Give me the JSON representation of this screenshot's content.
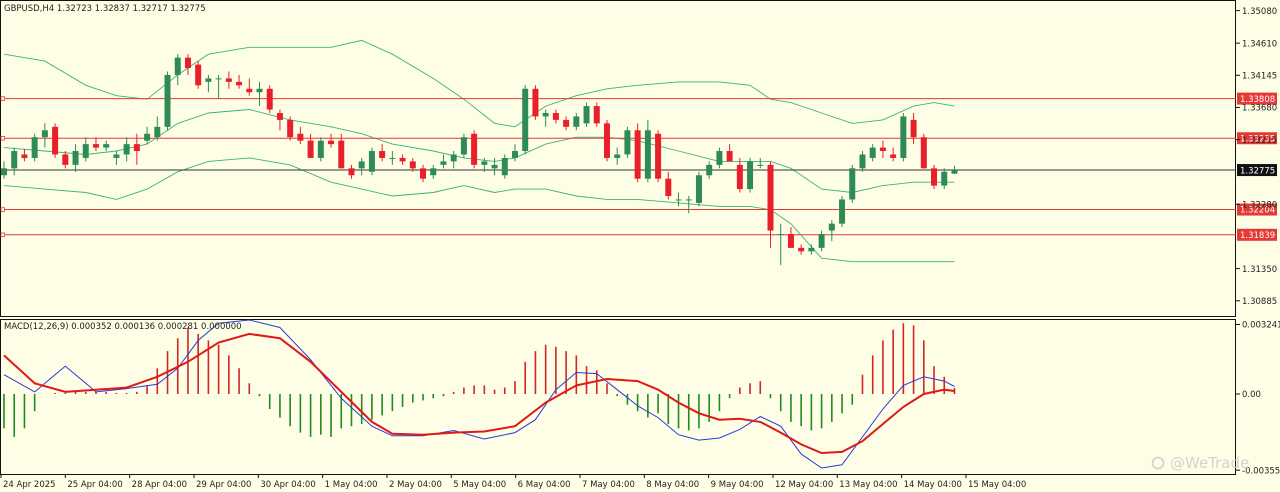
{
  "chart_data": {
    "type": "candlestick",
    "symbol_label": "GBPUSD,H4  1.32723 1.32837 1.32717 1.32775",
    "macd_label": "MACD(12,26,9) 0.000352 0.000136 0.000281 0.000000",
    "watermark": "@WeTrade",
    "colors": {
      "background": "#fefee6",
      "bull": "#2e8b57",
      "bear": "#e8202b",
      "band": "#3cb371",
      "level_line": "#e53935",
      "current_line": "#333333",
      "macd_line": "#2a3bd6",
      "signal_line": "#e01818",
      "hist_pos": "#d42424",
      "hist_neg": "#1f8a1f"
    },
    "price_axis": {
      "range": [
        1.30665,
        1.35219
      ],
      "ticks": [
        "1.35080",
        "1.34610",
        "1.34145",
        "1.33680",
        "1.33215",
        "1.32280",
        "1.31350",
        "1.30885"
      ]
    },
    "macd_axis": {
      "range": [
        -0.00373,
        0.00345
      ],
      "ticks": [
        "0.003241",
        "0.00",
        "-0.003552"
      ]
    },
    "levels": [
      {
        "value": 1.33808,
        "label": "1.33808"
      },
      {
        "value": 1.33235,
        "label": "1.33235"
      },
      {
        "value": 1.32204,
        "label": "1.32204"
      },
      {
        "value": 1.31839,
        "label": "1.31839"
      }
    ],
    "current_price": {
      "value": 1.32775,
      "label": "1.32775"
    },
    "time_labels": [
      "24 Apr 2025",
      "25 Apr 04:00",
      "28 Apr 04:00",
      "29 Apr 04:00",
      "30 Apr 04:00",
      "1 May 04:00",
      "2 May 04:00",
      "5 May 04:00",
      "6 May 04:00",
      "7 May 04:00",
      "8 May 04:00",
      "9 May 04:00",
      "12 May 04:00",
      "13 May 04:00",
      "14 May 04:00",
      "15 May 04:00"
    ],
    "candles": [
      [
        1.327,
        1.329,
        1.3265,
        1.328
      ],
      [
        1.328,
        1.331,
        1.327,
        1.3305
      ],
      [
        1.33,
        1.3308,
        1.329,
        1.3295
      ],
      [
        1.3295,
        1.333,
        1.329,
        1.3325
      ],
      [
        1.3325,
        1.3345,
        1.331,
        1.3335
      ],
      [
        1.334,
        1.3345,
        1.3295,
        1.33
      ],
      [
        1.33,
        1.3305,
        1.328,
        1.3285
      ],
      [
        1.3285,
        1.3315,
        1.3275,
        1.3305
      ],
      [
        1.3295,
        1.3325,
        1.329,
        1.3315
      ],
      [
        1.3315,
        1.3325,
        1.3305,
        1.331
      ],
      [
        1.331,
        1.332,
        1.3305,
        1.3315
      ],
      [
        1.3295,
        1.3305,
        1.3285,
        1.33
      ],
      [
        1.33,
        1.3325,
        1.329,
        1.3315
      ],
      [
        1.3315,
        1.333,
        1.3285,
        1.3305
      ],
      [
        1.332,
        1.334,
        1.3315,
        1.333
      ],
      [
        1.3325,
        1.3355,
        1.332,
        1.334
      ],
      [
        1.334,
        1.342,
        1.3335,
        1.3415
      ],
      [
        1.3415,
        1.3445,
        1.34,
        1.344
      ],
      [
        1.344,
        1.3445,
        1.3415,
        1.3425
      ],
      [
        1.343,
        1.3435,
        1.3395,
        1.34
      ],
      [
        1.3405,
        1.3415,
        1.339,
        1.341
      ],
      [
        1.341,
        1.3415,
        1.338,
        1.341
      ],
      [
        1.341,
        1.342,
        1.3395,
        1.3405
      ],
      [
        1.3405,
        1.3415,
        1.3395,
        1.34
      ],
      [
        1.3395,
        1.341,
        1.3385,
        1.339
      ],
      [
        1.339,
        1.3405,
        1.337,
        1.3395
      ],
      [
        1.3395,
        1.34,
        1.336,
        1.3365
      ],
      [
        1.336,
        1.3365,
        1.3335,
        1.335
      ],
      [
        1.335,
        1.3355,
        1.332,
        1.3325
      ],
      [
        1.333,
        1.334,
        1.3315,
        1.332
      ],
      [
        1.332,
        1.333,
        1.3295,
        1.3295
      ],
      [
        1.3295,
        1.3325,
        1.329,
        1.332
      ],
      [
        1.332,
        1.333,
        1.331,
        1.3315
      ],
      [
        1.332,
        1.333,
        1.328,
        1.328
      ],
      [
        1.328,
        1.3285,
        1.3265,
        1.327
      ],
      [
        1.328,
        1.3295,
        1.327,
        1.329
      ],
      [
        1.3275,
        1.331,
        1.327,
        1.3305
      ],
      [
        1.3305,
        1.3315,
        1.329,
        1.3295
      ],
      [
        1.3295,
        1.3305,
        1.3285,
        1.3295
      ],
      [
        1.3295,
        1.33,
        1.3285,
        1.329
      ],
      [
        1.329,
        1.3295,
        1.3275,
        1.328
      ],
      [
        1.328,
        1.3285,
        1.326,
        1.3265
      ],
      [
        1.327,
        1.3285,
        1.3265,
        1.328
      ],
      [
        1.3285,
        1.33,
        1.328,
        1.329
      ],
      [
        1.329,
        1.3305,
        1.328,
        1.33
      ],
      [
        1.33,
        1.333,
        1.3295,
        1.3325
      ],
      [
        1.333,
        1.3335,
        1.328,
        1.3285
      ],
      [
        1.3285,
        1.3295,
        1.3275,
        1.329
      ],
      [
        1.328,
        1.3295,
        1.327,
        1.3285
      ],
      [
        1.327,
        1.33,
        1.3265,
        1.3295
      ],
      [
        1.3295,
        1.3315,
        1.329,
        1.3305
      ],
      [
        1.3305,
        1.34,
        1.33,
        1.3395
      ],
      [
        1.3395,
        1.34,
        1.335,
        1.3355
      ],
      [
        1.3355,
        1.3365,
        1.334,
        1.336
      ],
      [
        1.336,
        1.3365,
        1.3345,
        1.335
      ],
      [
        1.335,
        1.3355,
        1.3335,
        1.334
      ],
      [
        1.334,
        1.336,
        1.3335,
        1.3355
      ],
      [
        1.3345,
        1.3375,
        1.334,
        1.337
      ],
      [
        1.337,
        1.3375,
        1.334,
        1.3345
      ],
      [
        1.3345,
        1.335,
        1.329,
        1.3295
      ],
      [
        1.3295,
        1.331,
        1.3285,
        1.33
      ],
      [
        1.33,
        1.334,
        1.3295,
        1.3335
      ],
      [
        1.3335,
        1.3345,
        1.326,
        1.3265
      ],
      [
        1.3265,
        1.335,
        1.326,
        1.3335
      ],
      [
        1.333,
        1.3335,
        1.326,
        1.3265
      ],
      [
        1.3265,
        1.3275,
        1.3235,
        1.324
      ],
      [
        1.3235,
        1.3245,
        1.3225,
        1.3235
      ],
      [
        1.3235,
        1.324,
        1.3215,
        1.3235
      ],
      [
        1.323,
        1.3275,
        1.3225,
        1.327
      ],
      [
        1.327,
        1.329,
        1.3265,
        1.3285
      ],
      [
        1.3285,
        1.331,
        1.328,
        1.3305
      ],
      [
        1.3305,
        1.3315,
        1.329,
        1.329
      ],
      [
        1.3285,
        1.3295,
        1.3245,
        1.325
      ],
      [
        1.325,
        1.3295,
        1.3245,
        1.329
      ],
      [
        1.3285,
        1.3295,
        1.328,
        1.3285
      ],
      [
        1.3285,
        1.329,
        1.3165,
        1.319
      ],
      [
        1.3185,
        1.32,
        1.314,
        1.3185
      ],
      [
        1.3185,
        1.3195,
        1.3165,
        1.3165
      ],
      [
        1.3165,
        1.317,
        1.3155,
        1.316
      ],
      [
        1.316,
        1.317,
        1.3155,
        1.3165
      ],
      [
        1.3165,
        1.319,
        1.316,
        1.3185
      ],
      [
        1.319,
        1.3205,
        1.3175,
        1.32
      ],
      [
        1.32,
        1.324,
        1.3195,
        1.3235
      ],
      [
        1.3235,
        1.3285,
        1.323,
        1.328
      ],
      [
        1.328,
        1.3305,
        1.3275,
        1.33
      ],
      [
        1.3295,
        1.3315,
        1.329,
        1.331
      ],
      [
        1.331,
        1.332,
        1.3295,
        1.3305
      ],
      [
        1.33,
        1.331,
        1.329,
        1.3295
      ],
      [
        1.3295,
        1.336,
        1.329,
        1.3355
      ],
      [
        1.335,
        1.336,
        1.3315,
        1.3325
      ],
      [
        1.3325,
        1.333,
        1.328,
        1.328
      ],
      [
        1.328,
        1.3285,
        1.325,
        1.3255
      ],
      [
        1.3255,
        1.328,
        1.325,
        1.3275
      ],
      [
        1.32723,
        1.32837,
        1.32717,
        1.32775
      ]
    ],
    "bands": {
      "upper": [
        [
          0,
          1.3445
        ],
        [
          4,
          1.3435
        ],
        [
          8,
          1.34
        ],
        [
          11,
          1.3385
        ],
        [
          14,
          1.338
        ],
        [
          17,
          1.3415
        ],
        [
          20,
          1.3445
        ],
        [
          24,
          1.3455
        ],
        [
          28,
          1.3455
        ],
        [
          32,
          1.3455
        ],
        [
          35,
          1.3465
        ],
        [
          38,
          1.3445
        ],
        [
          42,
          1.341
        ],
        [
          45,
          1.338
        ],
        [
          48,
          1.3345
        ],
        [
          50,
          1.334
        ],
        [
          53,
          1.337
        ],
        [
          56,
          1.3385
        ],
        [
          59,
          1.3395
        ],
        [
          62,
          1.34
        ],
        [
          66,
          1.3405
        ],
        [
          70,
          1.3405
        ],
        [
          73,
          1.34
        ],
        [
          75,
          1.338
        ],
        [
          77,
          1.3375
        ],
        [
          80,
          1.336
        ],
        [
          83,
          1.3345
        ],
        [
          86,
          1.335
        ],
        [
          89,
          1.337
        ],
        [
          91,
          1.3375
        ],
        [
          93,
          1.337
        ]
      ],
      "middle": [
        [
          0,
          1.331
        ],
        [
          4,
          1.3305
        ],
        [
          8,
          1.33
        ],
        [
          11,
          1.3305
        ],
        [
          14,
          1.3315
        ],
        [
          17,
          1.3345
        ],
        [
          20,
          1.336
        ],
        [
          24,
          1.3365
        ],
        [
          28,
          1.335
        ],
        [
          32,
          1.334
        ],
        [
          35,
          1.333
        ],
        [
          38,
          1.3315
        ],
        [
          42,
          1.3305
        ],
        [
          45,
          1.3295
        ],
        [
          48,
          1.329
        ],
        [
          50,
          1.3295
        ],
        [
          53,
          1.3315
        ],
        [
          56,
          1.3325
        ],
        [
          59,
          1.3325
        ],
        [
          62,
          1.332
        ],
        [
          66,
          1.3305
        ],
        [
          70,
          1.329
        ],
        [
          73,
          1.329
        ],
        [
          75,
          1.329
        ],
        [
          77,
          1.328
        ],
        [
          80,
          1.325
        ],
        [
          83,
          1.3245
        ],
        [
          86,
          1.3255
        ],
        [
          89,
          1.326
        ],
        [
          91,
          1.326
        ],
        [
          93,
          1.326
        ]
      ],
      "lower": [
        [
          0,
          1.3255
        ],
        [
          4,
          1.325
        ],
        [
          8,
          1.3245
        ],
        [
          11,
          1.3235
        ],
        [
          14,
          1.325
        ],
        [
          17,
          1.3275
        ],
        [
          20,
          1.329
        ],
        [
          24,
          1.3295
        ],
        [
          28,
          1.3285
        ],
        [
          32,
          1.326
        ],
        [
          35,
          1.325
        ],
        [
          38,
          1.324
        ],
        [
          42,
          1.3245
        ],
        [
          45,
          1.3255
        ],
        [
          48,
          1.3245
        ],
        [
          50,
          1.325
        ],
        [
          53,
          1.325
        ],
        [
          56,
          1.324
        ],
        [
          59,
          1.3235
        ],
        [
          62,
          1.3235
        ],
        [
          66,
          1.323
        ],
        [
          70,
          1.3225
        ],
        [
          73,
          1.3225
        ],
        [
          75,
          1.322
        ],
        [
          77,
          1.32
        ],
        [
          80,
          1.315
        ],
        [
          83,
          1.3145
        ],
        [
          86,
          1.3145
        ],
        [
          89,
          1.3145
        ],
        [
          91,
          1.3145
        ],
        [
          93,
          1.3145
        ]
      ]
    },
    "macd": {
      "line": [
        [
          0,
          0.0009
        ],
        [
          3,
          0.0001
        ],
        [
          6,
          0.0013
        ],
        [
          9,
          0.0001
        ],
        [
          12,
          0.00025
        ],
        [
          15,
          0.00045
        ],
        [
          17,
          0.0012
        ],
        [
          19,
          0.0025
        ],
        [
          21,
          0.0033
        ],
        [
          24,
          0.00345
        ],
        [
          27,
          0.0031
        ],
        [
          30,
          0.0016
        ],
        [
          33,
          -0.0002
        ],
        [
          36,
          -0.0015
        ],
        [
          38,
          -0.00195
        ],
        [
          41,
          -0.00195
        ],
        [
          44,
          -0.0017
        ],
        [
          47,
          -0.0021
        ],
        [
          50,
          -0.0018
        ],
        [
          52,
          -0.0012
        ],
        [
          54,
          0.0002
        ],
        [
          56,
          0.001
        ],
        [
          58,
          0.00095
        ],
        [
          60,
          0.0002
        ],
        [
          62,
          -0.00055
        ],
        [
          64,
          -0.0011
        ],
        [
          66,
          -0.0019
        ],
        [
          68,
          -0.00215
        ],
        [
          70,
          -0.00205
        ],
        [
          72,
          -0.00165
        ],
        [
          74,
          -0.00105
        ],
        [
          76,
          -0.0015
        ],
        [
          78,
          -0.0028
        ],
        [
          80,
          -0.00345
        ],
        [
          82,
          -0.0033
        ],
        [
          84,
          -0.002
        ],
        [
          86,
          -0.0007
        ],
        [
          88,
          0.0004
        ],
        [
          90,
          0.0008
        ],
        [
          92,
          0.0006
        ],
        [
          93,
          0.00035
        ]
      ],
      "signal": [
        [
          0,
          0.0018
        ],
        [
          3,
          0.0005
        ],
        [
          6,
          0.0001
        ],
        [
          9,
          0.0002
        ],
        [
          12,
          0.0003
        ],
        [
          15,
          0.0008
        ],
        [
          18,
          0.0015
        ],
        [
          21,
          0.0024
        ],
        [
          24,
          0.0028
        ],
        [
          27,
          0.0026
        ],
        [
          30,
          0.0015
        ],
        [
          33,
          0.0001
        ],
        [
          36,
          -0.0013
        ],
        [
          38,
          -0.00185
        ],
        [
          41,
          -0.0019
        ],
        [
          44,
          -0.0018
        ],
        [
          47,
          -0.00175
        ],
        [
          50,
          -0.0015
        ],
        [
          53,
          -0.0004
        ],
        [
          56,
          0.0004
        ],
        [
          59,
          0.0007
        ],
        [
          62,
          0.0006
        ],
        [
          64,
          0.0002
        ],
        [
          66,
          -0.0004
        ],
        [
          68,
          -0.0009
        ],
        [
          70,
          -0.0012
        ],
        [
          72,
          -0.00115
        ],
        [
          74,
          -0.0013
        ],
        [
          76,
          -0.0018
        ],
        [
          78,
          -0.00235
        ],
        [
          80,
          -0.00275
        ],
        [
          82,
          -0.0027
        ],
        [
          84,
          -0.0022
        ],
        [
          86,
          -0.0014
        ],
        [
          88,
          -0.0006
        ],
        [
          90,
          0.0
        ],
        [
          92,
          0.0002
        ],
        [
          93,
          0.00014
        ]
      ],
      "histogram": [
        -0.0016,
        -0.002,
        -0.0016,
        -0.0008,
        0.0,
        5e-05,
        5e-05,
        0.0001,
        0.0001,
        0.0001,
        0.0001,
        5e-05,
        5e-05,
        0.0001,
        0.0004,
        0.0012,
        0.002,
        0.0026,
        0.0031,
        0.0028,
        0.0025,
        0.0023,
        0.0018,
        0.0012,
        0.0005,
        -0.0001,
        -0.0007,
        -0.0011,
        -0.0015,
        -0.0018,
        -0.002,
        -0.0019,
        -0.002,
        -0.0016,
        -0.0015,
        -0.0014,
        -0.0012,
        -0.001,
        -0.0008,
        -0.0006,
        -0.0004,
        -0.0003,
        -0.0002,
        -0.0001,
        0.0001,
        0.0003,
        0.0004,
        0.0004,
        0.0002,
        0.0003,
        0.0006,
        0.0015,
        0.002,
        0.0023,
        0.0022,
        0.002,
        0.0018,
        0.0013,
        0.0011,
        0.0005,
        -0.0001,
        -0.0005,
        -0.0008,
        -0.0011,
        -0.0009,
        -0.0014,
        -0.0016,
        -0.0017,
        -0.0016,
        -0.0013,
        -0.0008,
        -0.0002,
        0.0003,
        0.0005,
        0.0006,
        -0.0002,
        -0.0008,
        -0.0013,
        -0.0015,
        -0.0017,
        -0.0016,
        -0.0013,
        -0.0009,
        -0.0005,
        0.0009,
        0.0018,
        0.0025,
        0.003,
        0.0033,
        0.0032,
        0.0025,
        0.0013,
        0.0008,
        0.00028
      ]
    }
  }
}
